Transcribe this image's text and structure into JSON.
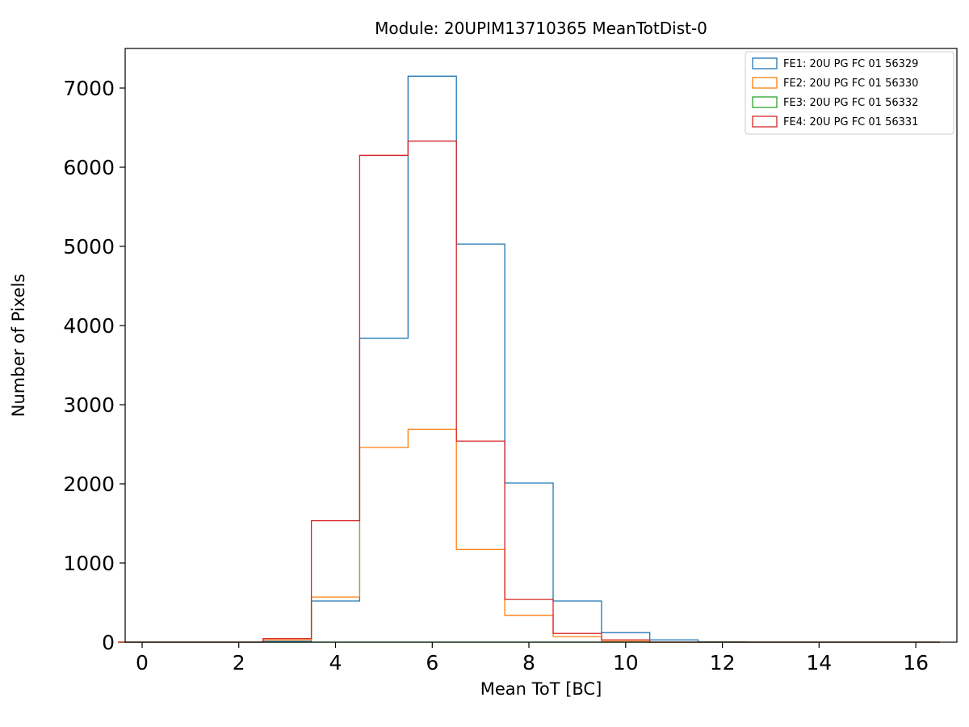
{
  "chart_data": {
    "type": "histogram-step",
    "title": "Module: 20UPIM13710365 MeanTotDist-0",
    "xlabel": "Mean ToT [BC]",
    "ylabel": "Number of Pixels",
    "bin_centers": [
      0,
      1,
      2,
      3,
      4,
      5,
      6,
      7,
      8,
      9,
      10,
      11,
      12,
      13,
      14,
      15,
      16
    ],
    "bin_width": 1,
    "xlim": [
      -0.35,
      16.85
    ],
    "ylim": [
      0,
      7500
    ],
    "xticks": [
      0,
      2,
      4,
      6,
      8,
      10,
      12,
      14,
      16
    ],
    "yticks": [
      0,
      1000,
      2000,
      3000,
      4000,
      5000,
      6000,
      7000
    ],
    "grid": false,
    "legend_position": "upper right",
    "series": [
      {
        "name": "FE1: 20U PG FC 01 56329",
        "color": "#1f77b4",
        "counts": [
          0,
          0,
          0,
          10,
          520,
          3840,
          7150,
          5030,
          2010,
          520,
          120,
          30,
          5,
          0,
          0,
          0,
          0
        ]
      },
      {
        "name": "FE2: 20U PG FC 01 56330",
        "color": "#ff7f0e",
        "counts": [
          0,
          0,
          0,
          30,
          570,
          2460,
          2690,
          1170,
          340,
          70,
          10,
          0,
          0,
          0,
          0,
          0,
          0
        ]
      },
      {
        "name": "FE3: 20U PG FC 01 56332",
        "color": "#2ca02c",
        "counts": [
          0,
          0,
          0,
          0,
          0,
          0,
          0,
          0,
          0,
          0,
          0,
          0,
          0,
          0,
          0,
          0,
          0
        ]
      },
      {
        "name": "FE4: 20U PG FC 01 56331",
        "color": "#d62728",
        "counts": [
          0,
          0,
          0,
          45,
          1535,
          6150,
          6330,
          2540,
          540,
          110,
          30,
          0,
          0,
          0,
          0,
          0,
          0
        ]
      }
    ]
  },
  "layout_colors": {
    "spine": "#000000",
    "legend_edge": "#cccccc",
    "legend_face": "#ffffff"
  }
}
